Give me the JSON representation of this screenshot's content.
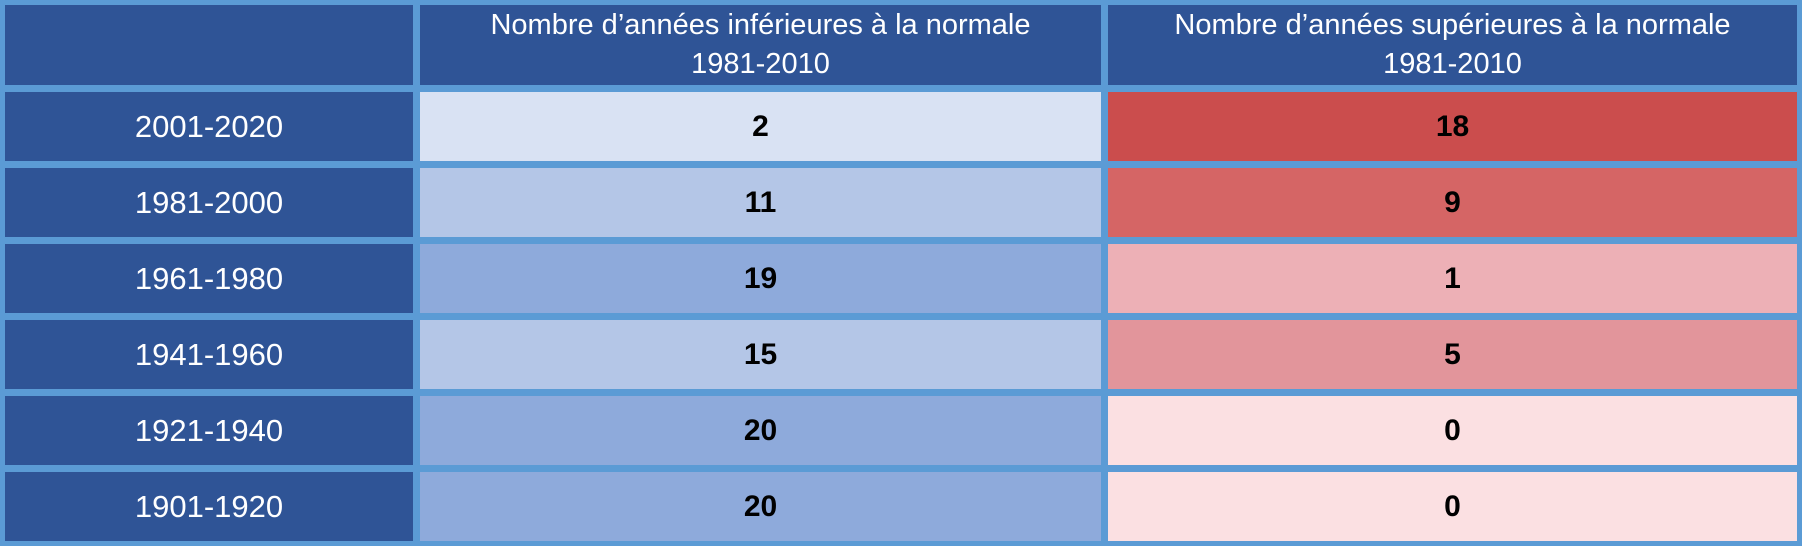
{
  "colors": {
    "header_bg": "#2F5496",
    "grid_border": "#5B9BD5",
    "header_text": "#FFFFFF",
    "value_text": "#000000"
  },
  "table": {
    "headers": {
      "below": "Nombre d’années inférieures à la normale\n1981-2010",
      "above": "Nombre d’années supérieures à la normale\n1981-2010"
    },
    "rows": [
      {
        "label": "2001-2020",
        "below": "2",
        "below_bg": "#D9E2F3",
        "above": "18",
        "above_bg": "#CB4D4D"
      },
      {
        "label": "1981-2000",
        "below": "11",
        "below_bg": "#B4C6E7",
        "above": "9",
        "above_bg": "#D56565"
      },
      {
        "label": "1961-1980",
        "below": "19",
        "below_bg": "#8EAADB",
        "above": "1",
        "above_bg": "#EDB0B6"
      },
      {
        "label": "1941-1960",
        "below": "15",
        "below_bg": "#B4C6E7",
        "above": "5",
        "above_bg": "#E2959B"
      },
      {
        "label": "1921-1940",
        "below": "20",
        "below_bg": "#8EAADB",
        "above": "0",
        "above_bg": "#FBE0E2"
      },
      {
        "label": "1901-1920",
        "below": "20",
        "below_bg": "#8EAADB",
        "above": "0",
        "above_bg": "#FBE0E2"
      }
    ]
  },
  "chart_data": {
    "type": "table",
    "columns": [
      "",
      "Nombre d’années inférieures à la normale 1981-2010",
      "Nombre d’années supérieures à la normale 1981-2010"
    ],
    "rows": [
      [
        "2001-2020",
        2,
        18
      ],
      [
        "1981-2000",
        11,
        9
      ],
      [
        "1961-1980",
        19,
        1
      ],
      [
        "1941-1960",
        15,
        5
      ],
      [
        "1921-1940",
        20,
        0
      ],
      [
        "1901-1920",
        20,
        0
      ]
    ],
    "legend_position": "none",
    "notes": "Heatmap-style shading: blue intensity scales with count of years below the 1981-2010 normal, red intensity scales with count of years above the normal."
  }
}
